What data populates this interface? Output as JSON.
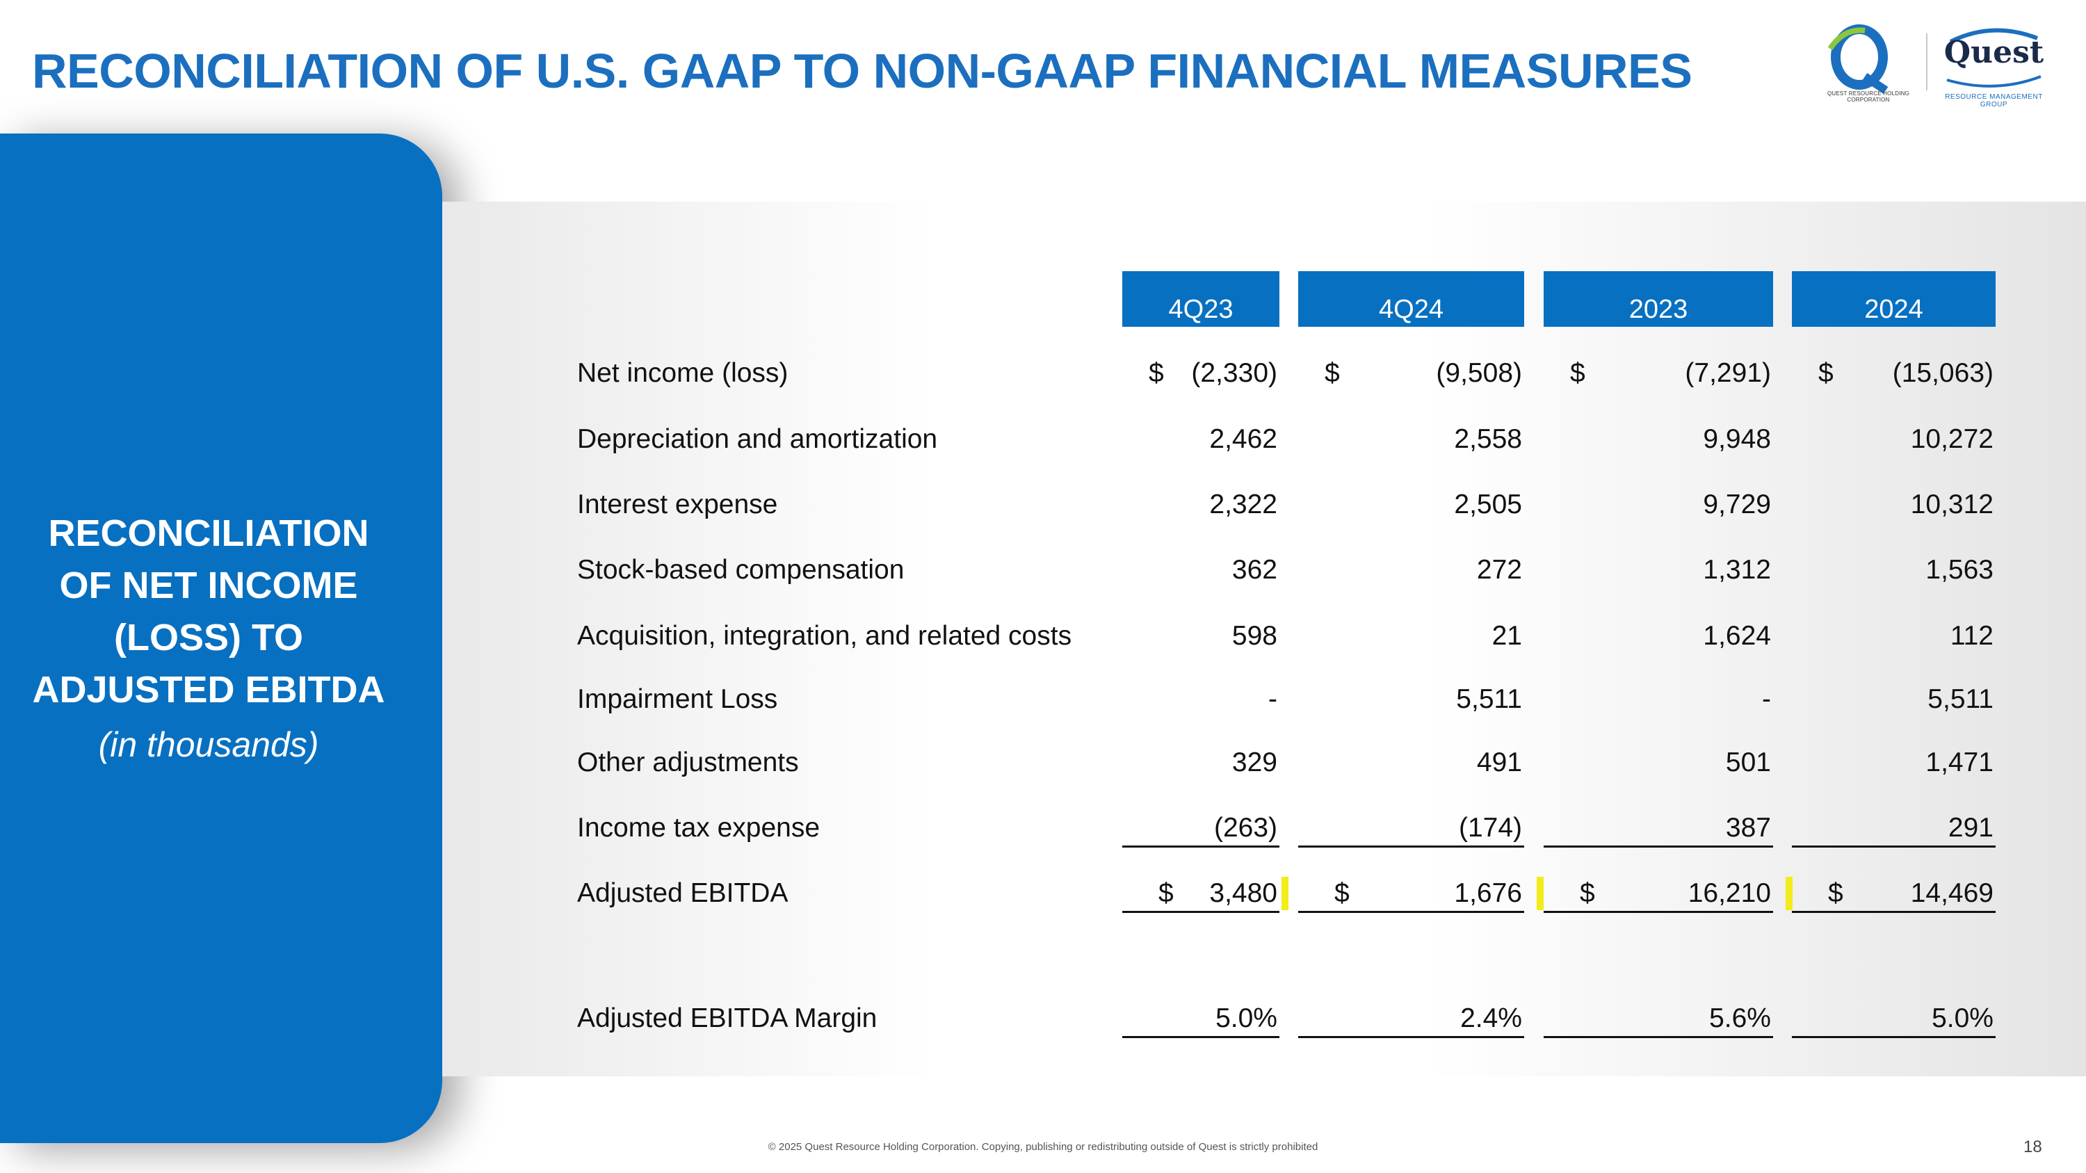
{
  "title": "RECONCILIATION OF U.S. GAAP TO NON-GAAP FINANCIAL MEASURES",
  "logos": {
    "left_caption": "QUEST RESOURCE HOLDING CORPORATION",
    "right_name": "Quest",
    "right_caption": "RESOURCE MANAGEMENT GROUP"
  },
  "panel": {
    "heading_lines": [
      "RECONCILIATION",
      "OF NET INCOME",
      "(LOSS) TO",
      "ADJUSTED EBITDA"
    ],
    "subheading": "(in thousands)"
  },
  "table": {
    "columns": [
      "4Q23",
      "4Q24",
      "2023",
      "2024"
    ],
    "rows": [
      {
        "label": "Net income (loss)",
        "values": [
          "(2,330)",
          "(9,508)",
          "(7,291)",
          "(15,063)"
        ],
        "dollar": true
      },
      {
        "label": "Depreciation and amortization",
        "values": [
          "2,462",
          "2,558",
          "9,948",
          "10,272"
        ]
      },
      {
        "label": "Interest expense",
        "values": [
          "2,322",
          "2,505",
          "9,729",
          "10,312"
        ]
      },
      {
        "label": "Stock-based compensation",
        "values": [
          "362",
          "272",
          "1,312",
          "1,563"
        ]
      },
      {
        "label": "Acquisition, integration, and related costs",
        "values": [
          "598",
          "21",
          "1,624",
          "112"
        ]
      },
      {
        "label": "Impairment Loss",
        "values": [
          "-",
          "5,511",
          "-",
          "5,511"
        ]
      },
      {
        "label": "Other adjustments",
        "values": [
          "329",
          "491",
          "501",
          "1,471"
        ]
      },
      {
        "label": "Income tax expense",
        "values": [
          "(263)",
          "(174)",
          "387",
          "291"
        ]
      },
      {
        "label": "Adjusted EBITDA",
        "values": [
          "3,480",
          "1,676",
          "16,210",
          "14,469"
        ],
        "dollar": true
      },
      {
        "label": "Adjusted EBITDA Margin",
        "values": [
          "5.0%",
          "2.4%",
          "5.6%",
          "5.0%"
        ]
      }
    ],
    "currency_symbol": "$"
  },
  "footer": "© 2025 Quest Resource Holding Corporation.  Copying, publishing or redistributing outside of Quest is strictly prohibited",
  "page_number": "18",
  "colors": {
    "brand_blue": "#0870c1",
    "title_blue": "#1b6fbe",
    "highlight": "#f2ec1b"
  }
}
